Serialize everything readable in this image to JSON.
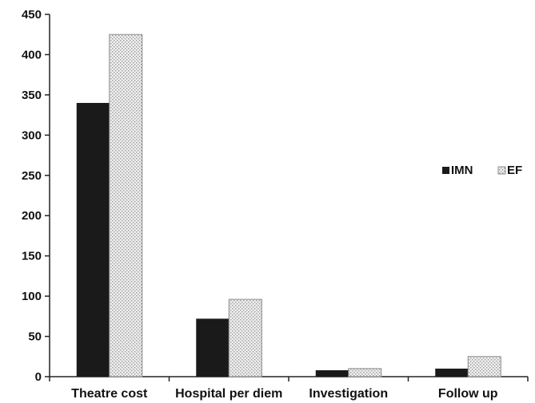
{
  "chart_data": {
    "type": "bar",
    "categories": [
      "Theatre cost",
      "Hospital per diem",
      "Investigation",
      "Follow up"
    ],
    "series": [
      {
        "name": "IMN",
        "values": [
          340,
          72,
          8,
          10
        ],
        "color": "#1a1a1a",
        "pattern": "solid"
      },
      {
        "name": "EF",
        "values": [
          425,
          96,
          10,
          25
        ],
        "color": "#e6e6e6",
        "pattern": "dotted"
      }
    ],
    "title": "",
    "xlabel": "",
    "ylabel": "",
    "ylim": [
      0,
      450
    ],
    "yticks": [
      0,
      50,
      100,
      150,
      200,
      250,
      300,
      350,
      400,
      450
    ],
    "grid": false,
    "legend_position": "right"
  }
}
